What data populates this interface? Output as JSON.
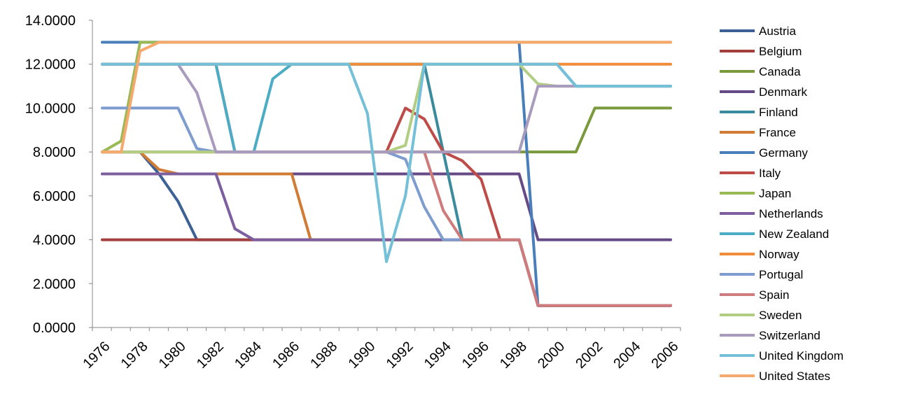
{
  "chart_data": {
    "type": "line",
    "title": "",
    "xlabel": "",
    "ylabel": "",
    "ylim": [
      0,
      14
    ],
    "xlim": [
      1976,
      2006
    ],
    "y_ticks": [
      "0.0000",
      "2.0000",
      "4.0000",
      "6.0000",
      "8.0000",
      "10.0000",
      "12.0000",
      "14.0000"
    ],
    "x_ticks": [
      "1976",
      "1978",
      "1980",
      "1982",
      "1984",
      "1986",
      "1988",
      "1990",
      "1992",
      "1994",
      "1996",
      "1998",
      "2000",
      "2002",
      "2004",
      "2006"
    ],
    "legend_position": "right",
    "grid": false,
    "x": [
      1976,
      1977,
      1978,
      1979,
      1980,
      1981,
      1982,
      1983,
      1984,
      1985,
      1986,
      1987,
      1988,
      1989,
      1990,
      1991,
      1992,
      1993,
      1994,
      1995,
      1996,
      1997,
      1998,
      1999,
      2000,
      2001,
      2002,
      2003,
      2004,
      2005,
      2006
    ],
    "series": [
      {
        "name": "Austria",
        "color": "#3C6194",
        "values": [
          8,
          8,
          8,
          7,
          5.75,
          4,
          4,
          4,
          4,
          4,
          4,
          4,
          4,
          4,
          4,
          4,
          4,
          4,
          4,
          4,
          4,
          4,
          4,
          1,
          1,
          1,
          1,
          1,
          1,
          1,
          1
        ]
      },
      {
        "name": "Belgium",
        "color": "#A33F3C",
        "values": [
          4,
          4,
          4,
          4,
          4,
          4,
          4,
          4,
          4,
          4,
          4,
          4,
          4,
          4,
          4,
          4,
          4,
          4,
          4,
          4,
          4,
          4,
          4,
          1,
          1,
          1,
          1,
          1,
          1,
          1,
          1
        ]
      },
      {
        "name": "Canada",
        "color": "#7A9A3D",
        "values": [
          8,
          8,
          8,
          8,
          8,
          8,
          8,
          8,
          8,
          8,
          8,
          8,
          8,
          8,
          8,
          8,
          8,
          8,
          8,
          8,
          8,
          8,
          8,
          8,
          8,
          8,
          10,
          10,
          10,
          10,
          10
        ]
      },
      {
        "name": "Denmark",
        "color": "#664A86",
        "values": [
          7,
          7,
          7,
          7,
          7,
          7,
          7,
          7,
          7,
          7,
          7,
          7,
          7,
          7,
          7,
          7,
          7,
          7,
          7,
          7,
          7,
          7,
          7,
          4,
          4,
          4,
          4,
          4,
          4,
          4,
          4
        ]
      },
      {
        "name": "Finland",
        "color": "#3A8B9E",
        "values": [
          12,
          12,
          12,
          12,
          12,
          12,
          12,
          12,
          12,
          12,
          12,
          12,
          12,
          12,
          12,
          12,
          12,
          12,
          8,
          4,
          4,
          4,
          4,
          1,
          1,
          1,
          1,
          1,
          1,
          1,
          1
        ]
      },
      {
        "name": "France",
        "color": "#D07C35",
        "values": [
          8,
          8,
          8,
          7.2,
          7,
          7,
          7,
          7,
          7,
          7,
          7,
          4,
          4,
          4,
          4,
          4,
          4,
          4,
          4,
          4,
          4,
          4,
          4,
          1,
          1,
          1,
          1,
          1,
          1,
          1,
          1
        ]
      },
      {
        "name": "Germany",
        "color": "#4A7EBB",
        "values": [
          13,
          13,
          13,
          13,
          13,
          13,
          13,
          13,
          13,
          13,
          13,
          13,
          13,
          13,
          13,
          13,
          13,
          13,
          13,
          13,
          13,
          13,
          13,
          1,
          1,
          1,
          1,
          1,
          1,
          1,
          1
        ]
      },
      {
        "name": "Italy",
        "color": "#BE4B48",
        "values": [
          12,
          12,
          12,
          12,
          12,
          12,
          12,
          8,
          8,
          8,
          8,
          8,
          8,
          8,
          8,
          8,
          10,
          9.5,
          8,
          7.6,
          6.75,
          4,
          4,
          1,
          1,
          1,
          1,
          1,
          1,
          1,
          1
        ]
      },
      {
        "name": "Japan",
        "color": "#98B954",
        "values": [
          8,
          8.5,
          13,
          13,
          13,
          13,
          13,
          13,
          13,
          13,
          13,
          13,
          13,
          13,
          13,
          13,
          13,
          13,
          13,
          13,
          13,
          13,
          13,
          13,
          13,
          13,
          13,
          13,
          13,
          13,
          13
        ]
      },
      {
        "name": "Netherlands",
        "color": "#7D5FA0",
        "values": [
          7,
          7,
          7,
          7,
          7,
          7,
          7,
          4.5,
          4,
          4,
          4,
          4,
          4,
          4,
          4,
          4,
          4,
          4,
          4,
          4,
          4,
          4,
          4,
          1,
          1,
          1,
          1,
          1,
          1,
          1,
          1
        ]
      },
      {
        "name": "New Zealand",
        "color": "#4BACC6",
        "values": [
          12,
          12,
          12,
          12,
          12,
          12,
          12,
          8,
          8,
          11.33,
          12,
          12,
          12,
          12,
          12,
          12,
          12,
          12,
          12,
          12,
          12,
          12,
          12,
          12,
          12,
          11,
          11,
          11,
          11,
          11,
          11
        ]
      },
      {
        "name": "Norway",
        "color": "#F08C3A",
        "values": [
          12,
          12,
          12,
          12,
          12,
          12,
          12,
          12,
          12,
          12,
          12,
          12,
          12,
          12,
          12,
          12,
          12,
          12,
          12,
          12,
          12,
          12,
          12,
          12,
          12,
          12,
          12,
          12,
          12,
          12,
          12
        ]
      },
      {
        "name": "Portugal",
        "color": "#7E9DCE",
        "values": [
          10,
          10,
          10,
          10,
          10,
          8.15,
          8,
          8,
          8,
          8,
          8,
          8,
          8,
          8,
          8,
          8,
          7.67,
          5.5,
          4,
          4,
          4,
          4,
          4,
          1,
          1,
          1,
          1,
          1,
          1,
          1,
          1
        ]
      },
      {
        "name": "Spain",
        "color": "#D07B7B",
        "values": [
          8,
          8,
          8,
          8,
          8,
          8,
          8,
          8,
          8,
          8,
          8,
          8,
          8,
          8,
          8,
          8,
          8,
          8,
          5.33,
          4,
          4,
          4,
          4,
          1,
          1,
          1,
          1,
          1,
          1,
          1,
          1
        ]
      },
      {
        "name": "Sweden",
        "color": "#B2CE83",
        "values": [
          8,
          8,
          8,
          8,
          8,
          8,
          8,
          8,
          8,
          8,
          8,
          8,
          8,
          8,
          8,
          8,
          8.3,
          12,
          12,
          12,
          12,
          12,
          12,
          11.1,
          11,
          11,
          11,
          11,
          11,
          11,
          11
        ]
      },
      {
        "name": "Switzerland",
        "color": "#A99BBD",
        "values": [
          12,
          12,
          12,
          12,
          12,
          10.7,
          8,
          8,
          8,
          8,
          8,
          8,
          8,
          8,
          8,
          8,
          8,
          8,
          8,
          8,
          8,
          8,
          8,
          11,
          11,
          11,
          11,
          11,
          11,
          11,
          11
        ]
      },
      {
        "name": "United Kingdom",
        "color": "#74C0D8",
        "values": [
          12,
          12,
          12,
          12,
          12,
          12,
          12,
          12,
          12,
          12,
          12,
          12,
          12,
          12,
          9.75,
          3,
          6,
          12,
          12,
          12,
          12,
          12,
          12,
          12,
          12,
          11,
          11,
          11,
          11,
          11,
          11
        ]
      },
      {
        "name": "United States",
        "color": "#F6A96D",
        "values": [
          8,
          8,
          12.6,
          13,
          13,
          13,
          13,
          13,
          13,
          13,
          13,
          13,
          13,
          13,
          13,
          13,
          13,
          13,
          13,
          13,
          13,
          13,
          13,
          13,
          13,
          13,
          13,
          13,
          13,
          13,
          13
        ]
      }
    ]
  }
}
